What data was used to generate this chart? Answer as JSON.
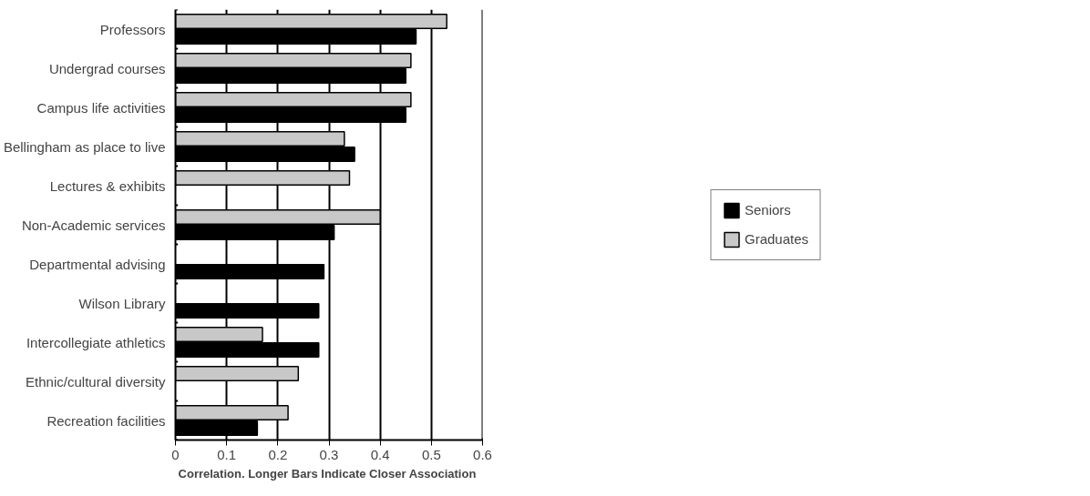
{
  "chart_data": {
    "type": "bar",
    "orientation": "horizontal",
    "xlabel": "Correlation.  Longer Bars Indicate Closer Association",
    "categories": [
      "Professors",
      "Undergrad courses",
      "Campus life activities",
      "Bellingham as place to live",
      "Lectures & exhibits",
      "Non-Academic services",
      "Departmental advising",
      "Wilson Library",
      "Intercollegiate athletics",
      "Ethnic/cultural diversity",
      "Recreation facilities"
    ],
    "series": [
      {
        "name": "Seniors",
        "color": "#000000",
        "values": [
          0.47,
          0.45,
          0.45,
          0.35,
          null,
          0.31,
          0.29,
          0.28,
          0.28,
          null,
          0.16
        ]
      },
      {
        "name": "Graduates",
        "color": "#c8c8c8",
        "values": [
          0.53,
          0.46,
          0.46,
          0.33,
          0.34,
          0.4,
          null,
          null,
          0.17,
          0.24,
          0.22
        ]
      }
    ],
    "xlim": [
      0,
      0.6
    ],
    "xticks": [
      0,
      {
        "value": 0.1,
        "label": "0.1"
      },
      {
        "value": 0.2,
        "label": "0.2"
      },
      {
        "value": 0.3,
        "label": "0.3"
      },
      {
        "value": 0.4,
        "label": "0.4"
      },
      {
        "value": 0.5,
        "label": "0.5"
      },
      {
        "value": 0.6,
        "label": "0.6"
      }
    ],
    "grid": "x",
    "legend": "right"
  }
}
